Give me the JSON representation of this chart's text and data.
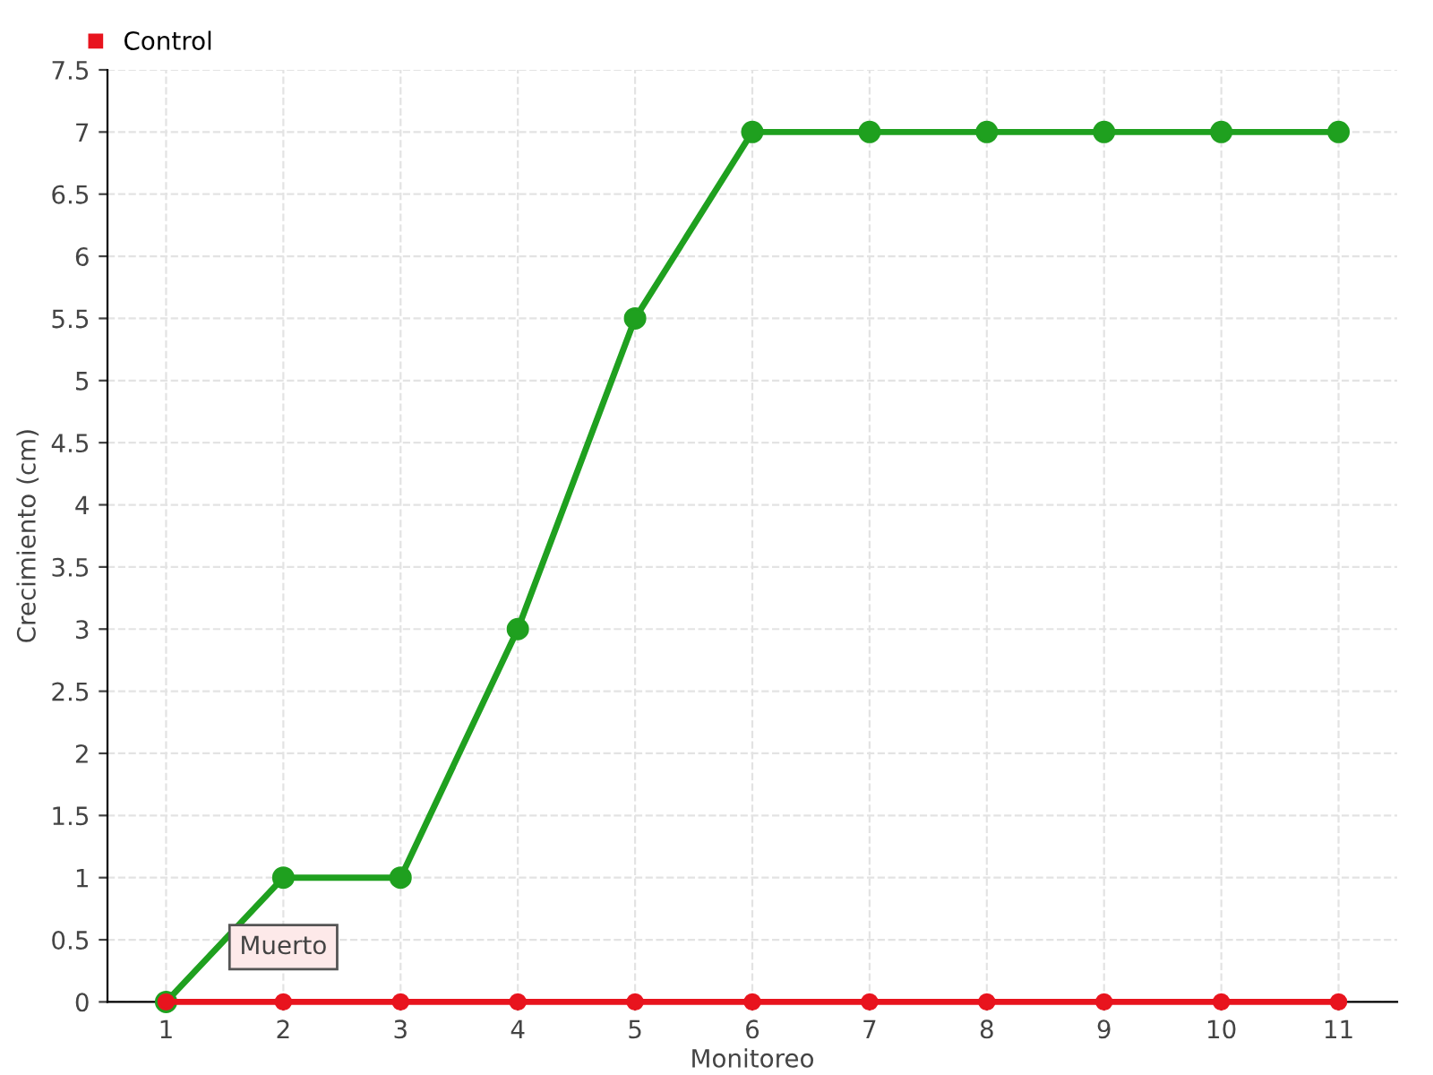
{
  "chart_data": {
    "type": "line",
    "xlabel": "Monitoreo",
    "ylabel": "Crecimiento (cm)",
    "categories": [
      "1",
      "2",
      "3",
      "4",
      "5",
      "6",
      "7",
      "8",
      "9",
      "10",
      "11"
    ],
    "series": [
      {
        "color": "#1fa01f",
        "values": [
          0,
          1,
          1,
          3,
          5.5,
          7,
          7,
          7,
          7,
          7,
          7
        ]
      },
      {
        "name": "Control",
        "color": "#e8141e",
        "values": [
          0,
          0,
          0,
          0,
          0,
          0,
          0,
          0,
          0,
          0,
          0
        ]
      }
    ],
    "ylim": [
      0,
      7.5
    ],
    "yticks": [
      0,
      0.5,
      1,
      1.5,
      2,
      2.5,
      3,
      3.5,
      4,
      4.5,
      5,
      5.5,
      6,
      6.5,
      7,
      7.5
    ],
    "grid": true,
    "legend": "top left",
    "marker": "circle",
    "line_style": "solid",
    "annotations": [
      {
        "text": "Muerto",
        "x": "2",
        "y": 0
      }
    ]
  }
}
